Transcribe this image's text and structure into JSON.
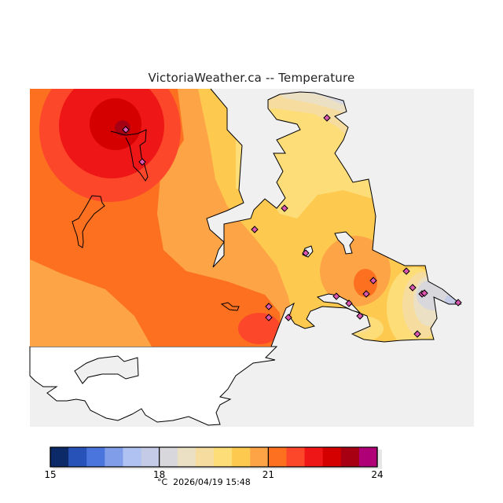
{
  "title": "VictoriaWeather.ca -- Temperature",
  "chart_data": {
    "type": "heatmap",
    "title": "VictoriaWeather.ca -- Temperature",
    "unit": "°C",
    "timestamp": "2026/04/19 15:48",
    "colorbar": {
      "min": 15,
      "max": 24,
      "step": 0.5,
      "tick_values": [
        15,
        18,
        21,
        24
      ],
      "tick_labels": [
        "15",
        "18",
        "21",
        "24"
      ],
      "colors": [
        "#0c2a67",
        "#2753b8",
        "#4a75dc",
        "#7f9de8",
        "#b0c2f2",
        "#c3cbe6",
        "#d8d8dc",
        "#ece0c4",
        "#f6dd9f",
        "#fddd78",
        "#fdc94f",
        "#fda447",
        "#fd7020",
        "#fd472a",
        "#ee1616",
        "#d40000",
        "#a60012",
        "#b00078"
      ]
    },
    "field_summary": {
      "max_area": "northwest, about 23.5–24 °C",
      "min_area": "southeast tip, about 18–18.5 °C",
      "peninsula_typical": "about 19.5–20.5 °C"
    },
    "station_count": 20
  },
  "footer": "°C  2026/04/19 15:48"
}
